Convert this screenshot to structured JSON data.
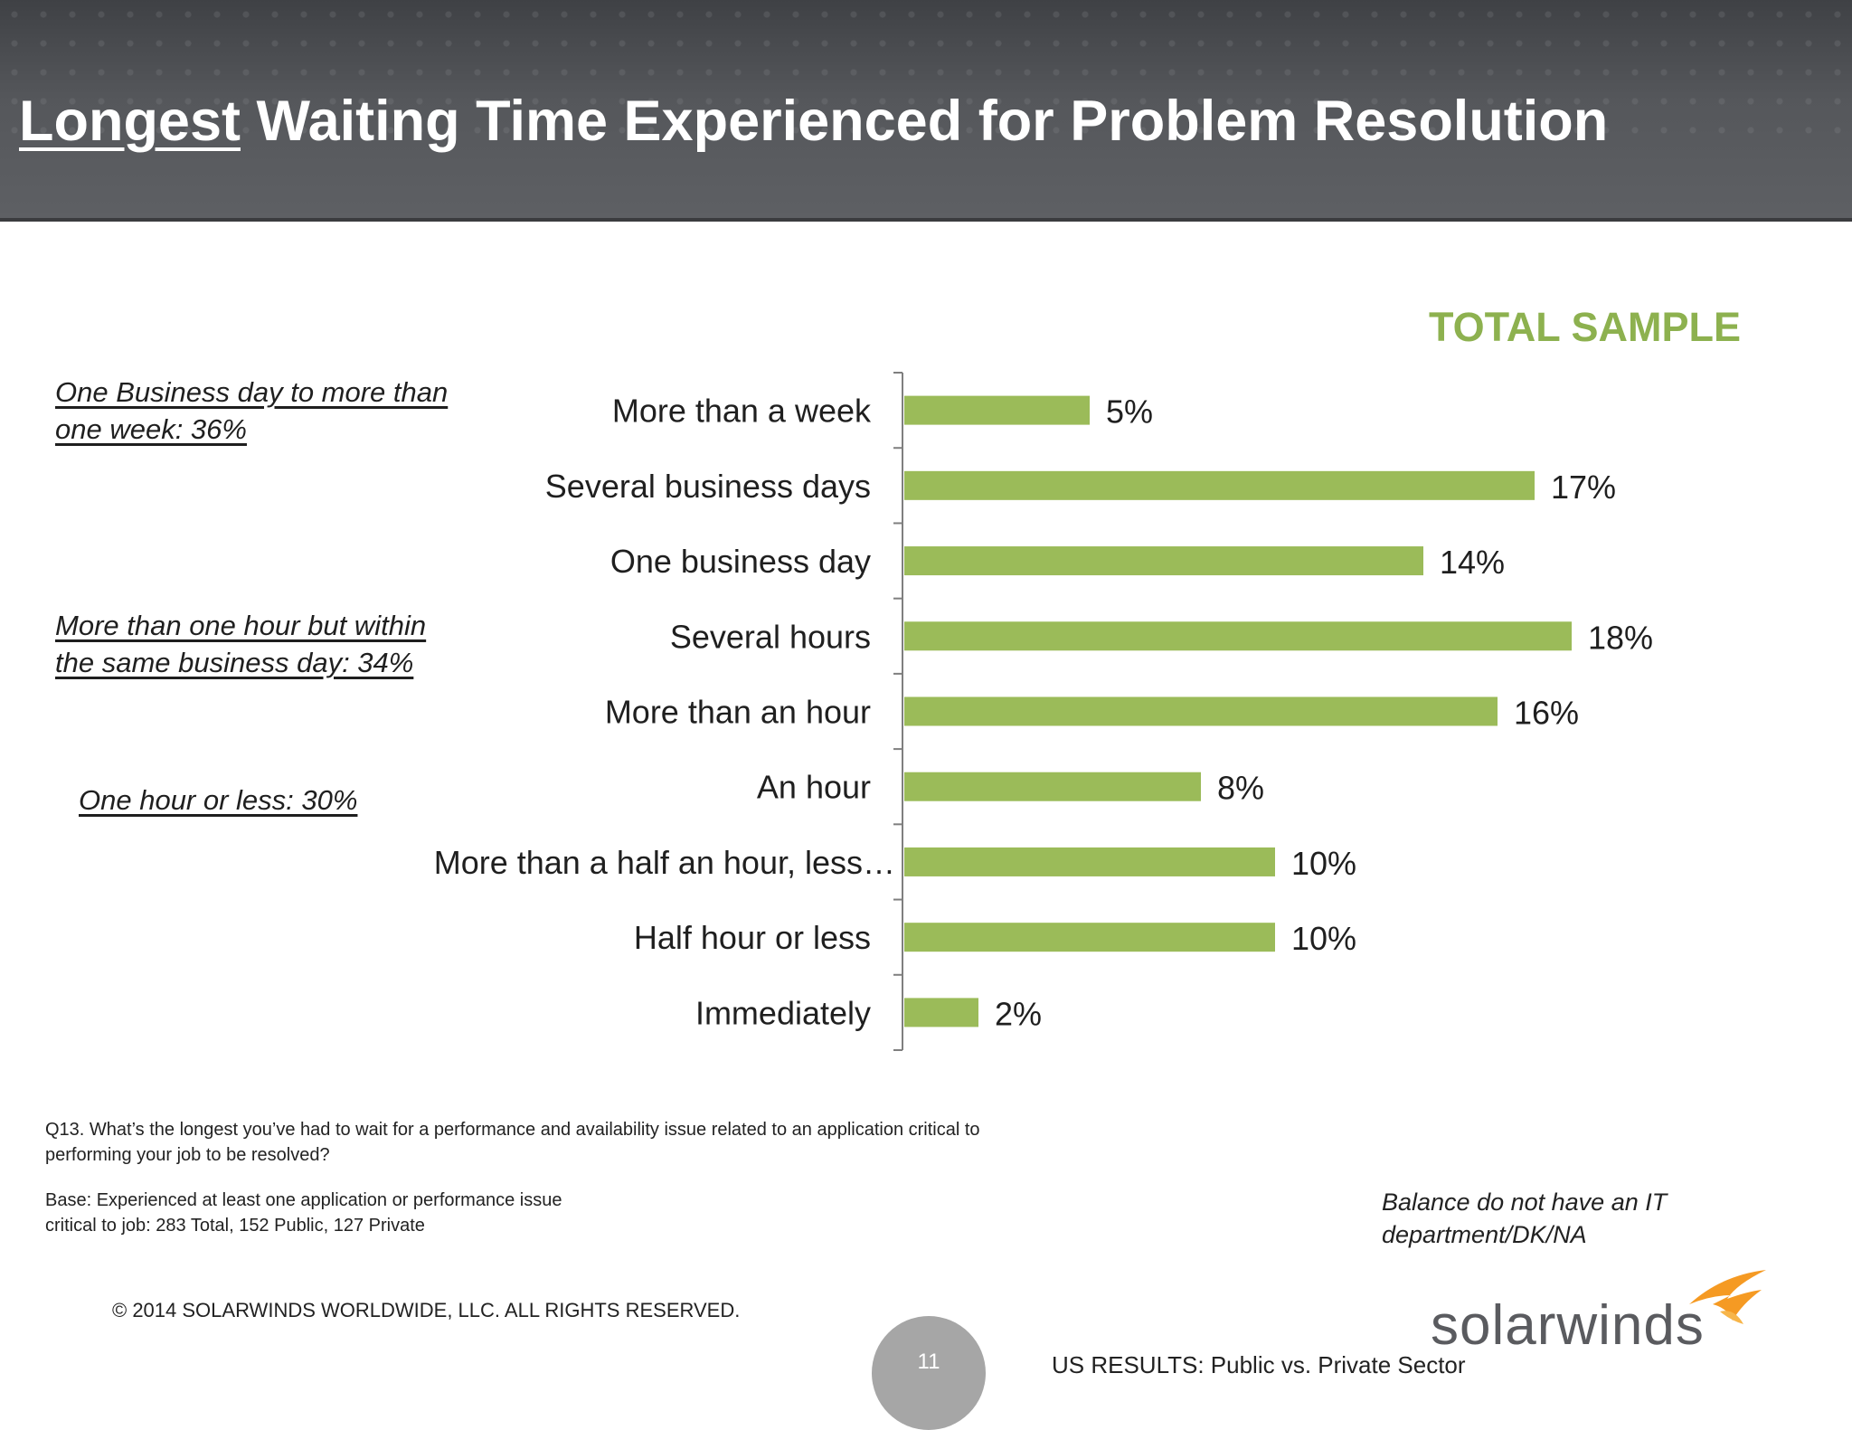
{
  "title": {
    "underlined": "Longest",
    "rest": " Waiting Time Experienced for Problem Resolution"
  },
  "sample_label": "TOTAL SAMPLE",
  "notes": [
    {
      "line1": "One Business day to more than",
      "line2": "one week:  36%"
    },
    {
      "line1": "More than one hour but within",
      "line2": "the same business day:  34%"
    },
    {
      "line1": "One hour or less:  30%",
      "line2": ""
    }
  ],
  "question": "Q13. What’s the longest you’ve had to wait for a performance and availability issue related to an application critical to performing your job to be resolved?",
  "base": "Base:  Experienced at least one  application or performance issue critical to job:  283 Total, 152 Public, 127 Private",
  "balance_note": "Balance do not have an IT department/DK/NA",
  "copyright": "© 2014 SOLARWINDS WORLDWIDE, LLC.  ALL RIGHTS RESERVED.",
  "page_number": "11",
  "results_label": "US RESULTS:  Public vs. Private Sector",
  "logo": {
    "text": "solarwinds",
    "flame_color": "#f59a23"
  },
  "colors": {
    "bar": "#9bbb59",
    "accent_title": "#8db14f",
    "header": "#55575b"
  },
  "chart_data": {
    "type": "bar",
    "orientation": "horizontal",
    "categories": [
      "More than a week",
      "Several business days",
      "One business day",
      "Several hours",
      "More than an hour",
      "An hour",
      "More than a half an hour, less…",
      "Half hour or less",
      "Immediately"
    ],
    "values": [
      5,
      17,
      14,
      18,
      16,
      8,
      10,
      10,
      2
    ],
    "value_labels": [
      "5%",
      "17%",
      "14%",
      "18%",
      "16%",
      "8%",
      "10%",
      "10%",
      "2%"
    ],
    "unit": "%",
    "grid": false,
    "legend": "none"
  }
}
